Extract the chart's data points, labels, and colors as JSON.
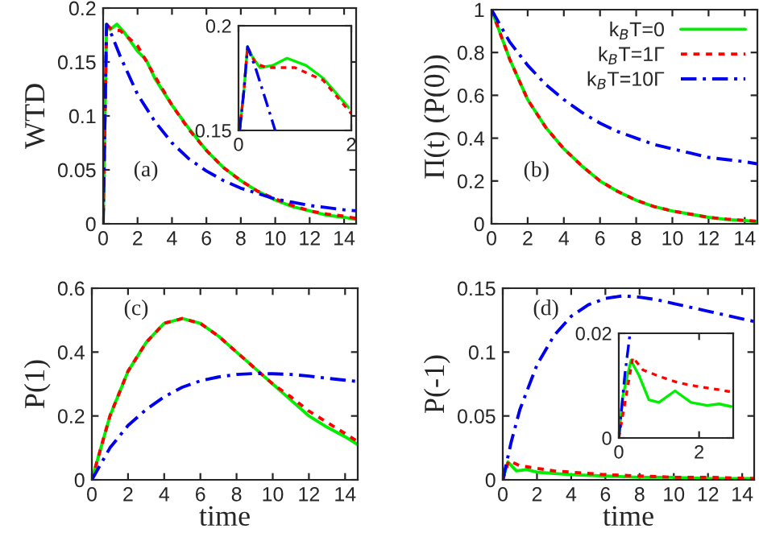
{
  "chart_data": [
    {
      "type": "line",
      "ylabel": "WTD",
      "xlim": [
        0,
        14.7
      ],
      "ylim": [
        0,
        0.2
      ],
      "xticks": [
        0,
        2,
        4,
        6,
        8,
        10,
        12,
        14
      ],
      "yticks": [
        0,
        0.05,
        0.1,
        0.15,
        0.2
      ],
      "annotations": [
        "(a)"
      ],
      "series": [
        {
          "color": "#00ee00",
          "line_style": "solid",
          "x": [
            0,
            0.2,
            0.4,
            0.8,
            1.2,
            2,
            2.5,
            3,
            4,
            5,
            6,
            7,
            8,
            9,
            10,
            11,
            12,
            13,
            14,
            14.7
          ],
          "values": [
            0,
            0.185,
            0.18,
            0.185,
            0.178,
            0.16,
            0.152,
            0.135,
            0.11,
            0.088,
            0.068,
            0.052,
            0.04,
            0.03,
            0.022,
            0.016,
            0.012,
            0.008,
            0.006,
            0.004
          ]
        },
        {
          "color": "#ff0000",
          "line_style": "dashed",
          "x": [
            0,
            0.2,
            0.5,
            1,
            2,
            3,
            4,
            5,
            6,
            7,
            8,
            9,
            10,
            11,
            12,
            13,
            14,
            14.7
          ],
          "values": [
            0,
            0.185,
            0.18,
            0.179,
            0.165,
            0.137,
            0.11,
            0.087,
            0.068,
            0.052,
            0.04,
            0.03,
            0.023,
            0.017,
            0.012,
            0.009,
            0.007,
            0.005
          ]
        },
        {
          "color": "#0000ee",
          "line_style": "dashdot",
          "x": [
            0,
            0.2,
            0.5,
            1,
            2,
            3,
            4,
            5,
            6,
            7,
            8,
            9,
            10,
            11,
            12,
            13,
            14,
            14.7
          ],
          "values": [
            0,
            0.185,
            0.175,
            0.155,
            0.12,
            0.095,
            0.075,
            0.06,
            0.049,
            0.04,
            0.033,
            0.028,
            0.023,
            0.02,
            0.017,
            0.015,
            0.013,
            0.012
          ]
        }
      ]
    },
    {
      "type": "line",
      "xlim": [
        0,
        2
      ],
      "ylim": [
        0.15,
        0.2
      ],
      "xticks": [
        0,
        2
      ],
      "yticks": [
        0.15,
        0.2
      ],
      "series": [
        {
          "color": "#00ee00",
          "line_style": "solid",
          "x": [
            0.02,
            0.1,
            0.16,
            0.25,
            0.38,
            0.6,
            0.86,
            1.2,
            1.5,
            1.95
          ],
          "values": [
            0.15,
            0.17,
            0.19,
            0.185,
            0.18,
            0.181,
            0.1845,
            0.181,
            0.175,
            0.161
          ]
        },
        {
          "color": "#ff0000",
          "line_style": "dashed",
          "x": [
            0.02,
            0.1,
            0.16,
            0.3,
            0.5,
            1,
            1.5,
            2
          ],
          "values": [
            0.15,
            0.17,
            0.19,
            0.182,
            0.18,
            0.18,
            0.174,
            0.158
          ]
        },
        {
          "color": "#0000ee",
          "line_style": "dashdot",
          "x": [
            0.02,
            0.1,
            0.16,
            0.3,
            0.5,
            0.65
          ],
          "values": [
            0.15,
            0.17,
            0.19,
            0.18,
            0.163,
            0.15
          ]
        }
      ]
    },
    {
      "type": "line",
      "ylabel": "Π(t) (P(0))",
      "xlim": [
        0,
        14.7
      ],
      "ylim": [
        0,
        1
      ],
      "xticks": [
        0,
        2,
        4,
        6,
        8,
        10,
        12,
        14
      ],
      "yticks": [
        0,
        0.2,
        0.4,
        0.6,
        0.8,
        1
      ],
      "annotations": [
        "(b)"
      ],
      "legend": "top right",
      "series": [
        {
          "name": "k$_{B}$T=0",
          "color": "#00ee00",
          "line_style": "solid",
          "x": [
            0,
            1,
            2,
            3,
            4,
            5,
            6,
            7,
            8,
            9,
            10,
            11,
            12,
            13,
            14,
            14.7
          ],
          "values": [
            1,
            0.77,
            0.58,
            0.45,
            0.35,
            0.27,
            0.2,
            0.15,
            0.11,
            0.08,
            0.06,
            0.045,
            0.03,
            0.02,
            0.015,
            0.01
          ]
        },
        {
          "name": "k$_{B}$T=1Γ",
          "color": "#ff0000",
          "line_style": "dashed",
          "x": [
            0,
            1,
            2,
            3,
            4,
            5,
            6,
            7,
            8,
            9,
            10,
            11,
            12,
            13,
            14,
            14.7
          ],
          "values": [
            1,
            0.77,
            0.58,
            0.45,
            0.35,
            0.27,
            0.2,
            0.15,
            0.11,
            0.08,
            0.06,
            0.045,
            0.03,
            0.022,
            0.016,
            0.012
          ]
        },
        {
          "name": "k$_{B}$T=10Γ",
          "color": "#0000ee",
          "line_style": "dashdot",
          "x": [
            0,
            1,
            2,
            3,
            4,
            5,
            6,
            7,
            8,
            9,
            10,
            11,
            12,
            13,
            14,
            14.7
          ],
          "values": [
            1,
            0.85,
            0.74,
            0.65,
            0.58,
            0.52,
            0.47,
            0.43,
            0.4,
            0.37,
            0.35,
            0.33,
            0.31,
            0.3,
            0.29,
            0.28
          ]
        }
      ]
    },
    {
      "type": "line",
      "xlabel": "time",
      "ylabel": "P(1)",
      "xlim": [
        0,
        14.7
      ],
      "ylim": [
        0,
        0.6
      ],
      "xticks": [
        0,
        2,
        4,
        6,
        8,
        10,
        12,
        14
      ],
      "yticks": [
        0,
        0.2,
        0.4,
        0.6
      ],
      "annotations": [
        "(c)"
      ],
      "series": [
        {
          "color": "#00ee00",
          "line_style": "solid",
          "x": [
            0,
            1,
            2,
            3,
            4,
            5,
            6,
            7,
            8,
            9,
            10,
            11,
            12,
            13,
            14,
            14.7
          ],
          "values": [
            0,
            0.2,
            0.34,
            0.43,
            0.49,
            0.505,
            0.49,
            0.45,
            0.4,
            0.35,
            0.3,
            0.25,
            0.2,
            0.165,
            0.135,
            0.11
          ]
        },
        {
          "color": "#ff0000",
          "line_style": "dashed",
          "x": [
            0,
            1,
            2,
            3,
            4,
            5,
            6,
            7,
            8,
            9,
            10,
            11,
            12,
            13,
            14,
            14.7
          ],
          "values": [
            0,
            0.2,
            0.34,
            0.43,
            0.49,
            0.505,
            0.49,
            0.45,
            0.4,
            0.35,
            0.3,
            0.26,
            0.215,
            0.18,
            0.145,
            0.12
          ]
        },
        {
          "color": "#0000ee",
          "line_style": "dashdot",
          "x": [
            0,
            1,
            2,
            3,
            4,
            5,
            6,
            7,
            8,
            9,
            10,
            11,
            12,
            13,
            14,
            14.7
          ],
          "values": [
            0,
            0.1,
            0.17,
            0.22,
            0.26,
            0.29,
            0.31,
            0.322,
            0.33,
            0.333,
            0.332,
            0.33,
            0.325,
            0.318,
            0.312,
            0.308
          ]
        }
      ]
    },
    {
      "type": "line",
      "xlabel": "time",
      "ylabel": "P(-1)",
      "xlim": [
        0,
        14.7
      ],
      "ylim": [
        0,
        0.15
      ],
      "xticks": [
        0,
        2,
        4,
        6,
        8,
        10,
        12,
        14
      ],
      "yticks": [
        0,
        0.05,
        0.1,
        0.15
      ],
      "annotations": [
        "(d)"
      ],
      "series": [
        {
          "color": "#00ee00",
          "line_style": "solid",
          "x": [
            0,
            0.3,
            0.8,
            1.4,
            2,
            3,
            4,
            6,
            8,
            10,
            12,
            14.7
          ],
          "values": [
            0,
            0.014,
            0.007,
            0.008,
            0.006,
            0.005,
            0.004,
            0.003,
            0.002,
            0.002,
            0.001,
            0.001
          ]
        },
        {
          "color": "#ff0000",
          "line_style": "dashed",
          "x": [
            0,
            0.35,
            1,
            2,
            3,
            4,
            6,
            8,
            10,
            12,
            14.7
          ],
          "values": [
            0,
            0.015,
            0.011,
            0.009,
            0.007,
            0.006,
            0.004,
            0.003,
            0.002,
            0.002,
            0.001
          ]
        },
        {
          "color": "#0000ee",
          "line_style": "dashdot",
          "x": [
            0,
            0.5,
            1,
            2,
            3,
            4,
            5,
            6,
            7,
            8,
            9,
            10,
            11,
            12,
            13,
            14,
            14.7
          ],
          "values": [
            0,
            0.03,
            0.055,
            0.09,
            0.113,
            0.128,
            0.137,
            0.142,
            0.144,
            0.143,
            0.141,
            0.138,
            0.135,
            0.132,
            0.129,
            0.126,
            0.124
          ]
        }
      ]
    },
    {
      "type": "line",
      "xlim": [
        0,
        2.85
      ],
      "ylim": [
        0,
        0.02
      ],
      "xticks": [
        0,
        2
      ],
      "yticks": [
        0,
        0.02
      ],
      "series": [
        {
          "color": "#00ee00",
          "line_style": "solid",
          "x": [
            0,
            0.1,
            0.3,
            0.5,
            0.75,
            1,
            1.4,
            1.8,
            2.2,
            2.5,
            2.8
          ],
          "values": [
            0,
            0.008,
            0.0148,
            0.012,
            0.0073,
            0.0068,
            0.009,
            0.0068,
            0.0062,
            0.0065,
            0.006
          ]
        },
        {
          "color": "#ff0000",
          "line_style": "dashed",
          "x": [
            0,
            0.35,
            0.6,
            1,
            1.5,
            2,
            2.5,
            2.8
          ],
          "values": [
            0,
            0.0154,
            0.013,
            0.0118,
            0.0105,
            0.0098,
            0.0092,
            0.0088
          ]
        },
        {
          "color": "#0000ee",
          "line_style": "dashdot",
          "x": [
            0,
            0.15,
            0.28
          ],
          "values": [
            0,
            0.012,
            0.02
          ]
        }
      ]
    }
  ]
}
